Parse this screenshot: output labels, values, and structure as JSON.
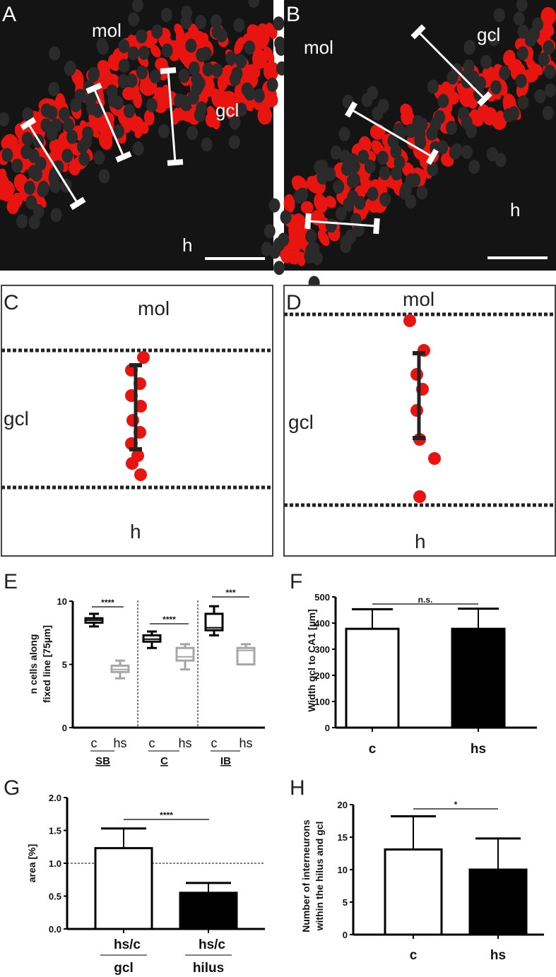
{
  "panels": {
    "A": {
      "letter": "A",
      "mol": "mol",
      "gcl": "gcl",
      "h": "h"
    },
    "B": {
      "letter": "B",
      "mol": "mol",
      "gcl": "gcl",
      "h": "h"
    },
    "C": {
      "letter": "C",
      "mol": "mol",
      "gcl": "gcl",
      "h": "h"
    },
    "D": {
      "letter": "D",
      "mol": "mol",
      "gcl": "gcl",
      "h": "h"
    },
    "E": {
      "letter": "E"
    },
    "F": {
      "letter": "F"
    },
    "G": {
      "letter": "G"
    },
    "H": {
      "letter": "H"
    }
  },
  "colors": {
    "nucleus": "#e8140f",
    "photo_bg": "#141414",
    "control": "#000000",
    "hs_box": "#a6a6a6"
  },
  "chart_data": [
    {
      "id": "E",
      "type": "box",
      "ylabel_lines": [
        "n cells along",
        "fixed line [75µm]"
      ],
      "ylim": [
        0,
        10
      ],
      "yticks": [
        "0",
        "5",
        "10"
      ],
      "ytick_values": [
        0,
        5,
        10
      ],
      "groups": [
        {
          "name": "SB",
          "significance": "****",
          "boxes": [
            {
              "label": "c",
              "min": 8.0,
              "q1": 8.3,
              "median": 8.5,
              "q3": 8.65,
              "max": 9.0
            },
            {
              "label": "hs",
              "min": 3.9,
              "q1": 4.4,
              "median": 4.6,
              "q3": 4.9,
              "max": 5.3
            }
          ]
        },
        {
          "name": "C",
          "significance": "****",
          "boxes": [
            {
              "label": "c",
              "min": 6.3,
              "q1": 6.8,
              "median": 7.0,
              "q3": 7.3,
              "max": 7.6
            },
            {
              "label": "hs",
              "min": 4.6,
              "q1": 5.3,
              "median": 5.6,
              "q3": 6.3,
              "max": 6.6
            }
          ]
        },
        {
          "name": "IB",
          "significance": "***",
          "boxes": [
            {
              "label": "c",
              "min": 7.3,
              "q1": 7.7,
              "median": 7.9,
              "q3": 9.0,
              "max": 9.6
            },
            {
              "label": "hs",
              "min": 5.0,
              "q1": 5.0,
              "median": 6.1,
              "q3": 6.3,
              "max": 6.6
            }
          ]
        }
      ]
    },
    {
      "id": "F",
      "type": "bar",
      "ylabel": "Width gcl to CA1 [µm]",
      "ylim": [
        0,
        500
      ],
      "yticks": [
        "0",
        "100",
        "200",
        "300",
        "400",
        "500"
      ],
      "ytick_values": [
        0,
        100,
        200,
        300,
        400,
        500
      ],
      "categories": [
        "c",
        "hs"
      ],
      "values": [
        378,
        378
      ],
      "errors": [
        75,
        77
      ],
      "significance": "n.s."
    },
    {
      "id": "G",
      "type": "bar",
      "ylabel": "area [%]",
      "ylim": [
        0,
        2.0
      ],
      "yticks": [
        "0.0",
        "0.5",
        "1.0",
        "1.5",
        "2.0"
      ],
      "ytick_values": [
        0,
        0.5,
        1.0,
        1.5,
        2.0
      ],
      "categories": [
        "hs/c",
        "hs/c"
      ],
      "sublabels": [
        "gcl",
        "hilus"
      ],
      "values": [
        1.23,
        0.55
      ],
      "errors": [
        0.3,
        0.15
      ],
      "reference_line": 1.0,
      "significance": "****"
    },
    {
      "id": "H",
      "type": "bar",
      "ylabel_lines": [
        "Number of interneurons",
        "within the hilus and gcl"
      ],
      "ylim": [
        0,
        20
      ],
      "yticks": [
        "0",
        "5",
        "10",
        "15",
        "20"
      ],
      "ytick_values": [
        0,
        5,
        10,
        15,
        20
      ],
      "categories": [
        "c",
        "hs"
      ],
      "values": [
        13.1,
        10.0
      ],
      "errors": [
        5.1,
        4.8
      ],
      "significance": "*"
    }
  ]
}
